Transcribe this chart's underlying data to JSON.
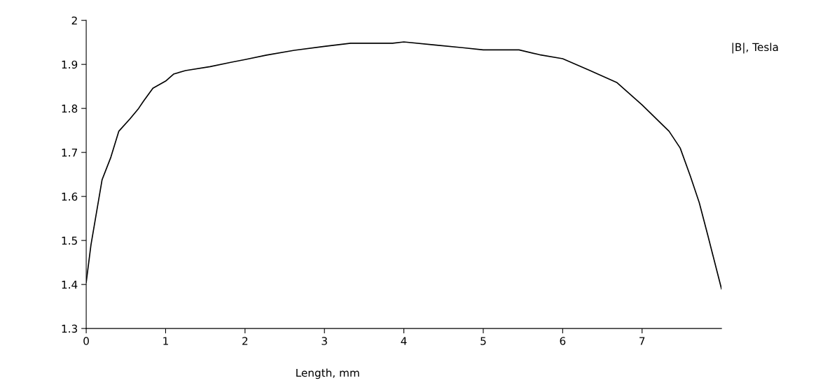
{
  "chart_data": {
    "type": "line",
    "xlabel": "Length, mm",
    "ylabel": "|B|, Tesla",
    "x": [
      0,
      0.06,
      0.2,
      0.31,
      0.41,
      0.55,
      0.66,
      0.72,
      0.84,
      1.0,
      1.1,
      1.25,
      1.56,
      1.83,
      2.0,
      2.27,
      2.62,
      3.0,
      3.33,
      3.86,
      4.0,
      4.39,
      4.74,
      5.0,
      5.45,
      5.71,
      6.0,
      6.33,
      6.68,
      7.0,
      7.34,
      7.48,
      7.61,
      7.72,
      7.83,
      8.0
    ],
    "series": [
      {
        "color": "#000000",
        "values": [
          1.405,
          1.49,
          1.638,
          1.689,
          1.748,
          1.776,
          1.8,
          1.816,
          1.846,
          1.862,
          1.878,
          1.886,
          1.895,
          1.905,
          1.911,
          1.921,
          1.932,
          1.941,
          1.948,
          1.948,
          1.951,
          1.944,
          1.938,
          1.933,
          1.933,
          1.922,
          1.913,
          1.887,
          1.859,
          1.808,
          1.748,
          1.71,
          1.645,
          1.586,
          1.51,
          1.39
        ]
      }
    ],
    "xlim": [
      0,
      8
    ],
    "xticks": [
      0,
      1,
      2,
      3,
      4,
      5,
      6,
      7
    ],
    "ylim": [
      1.3,
      2
    ],
    "yticks": [
      1.3,
      1.4,
      1.5,
      1.6,
      1.7,
      1.8,
      1.9,
      {
        "value": 2,
        "label": "2"
      }
    ],
    "grid": false,
    "legend": false,
    "marker": "none",
    "line_style": "solid"
  }
}
